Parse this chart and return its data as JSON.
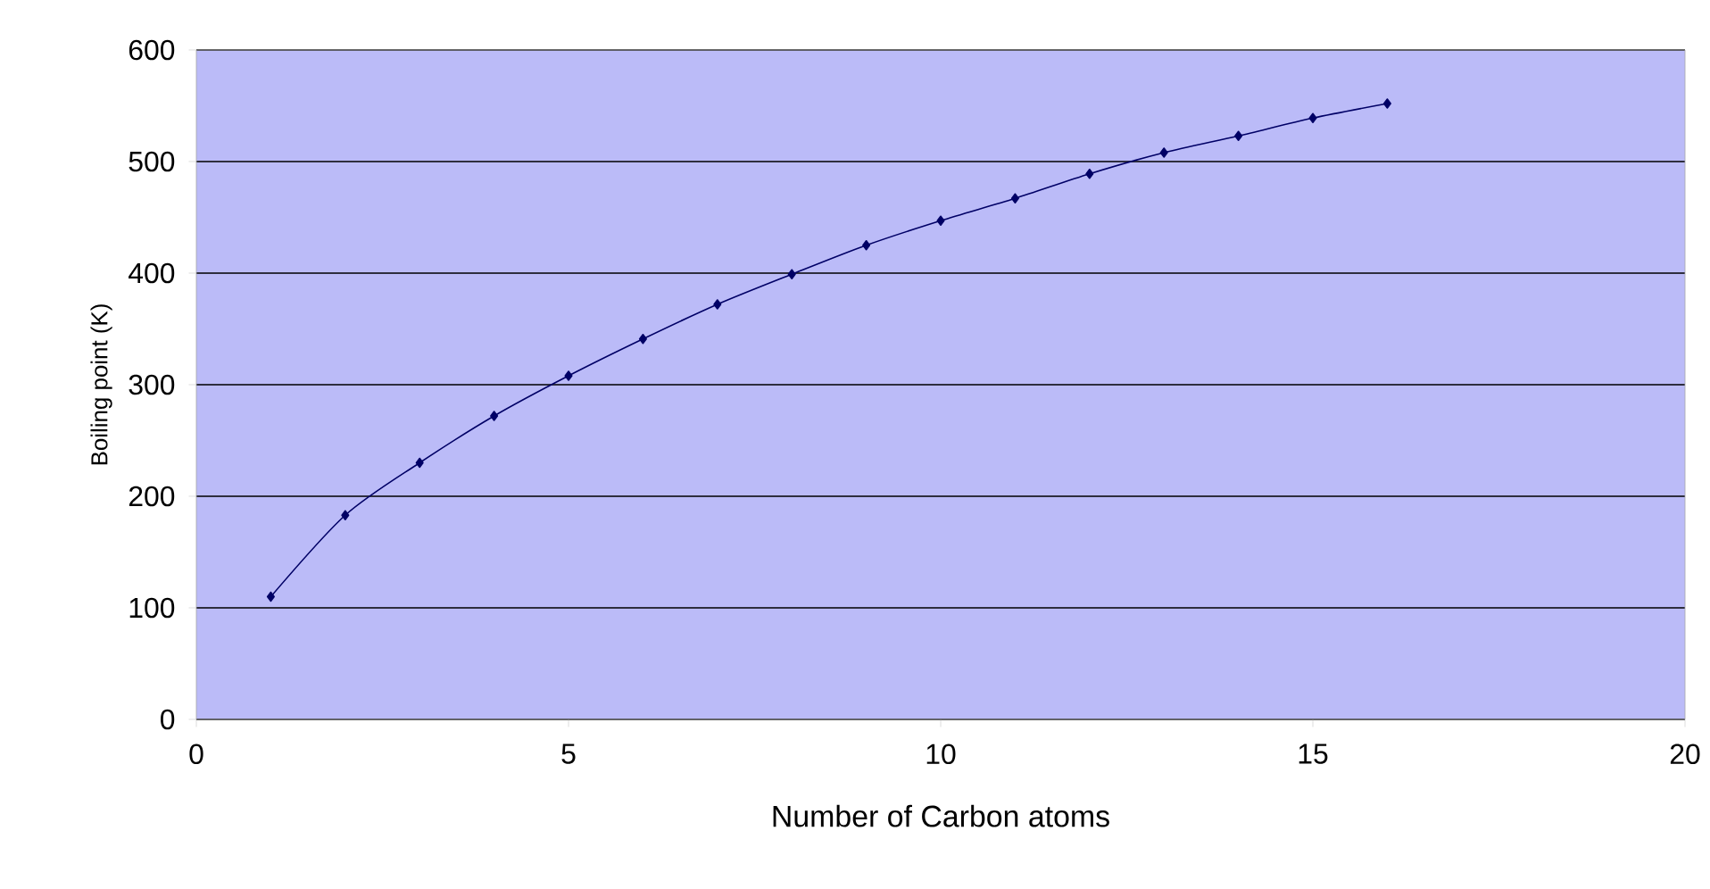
{
  "chart_data": {
    "type": "line",
    "xlabel": "Number of Carbon atoms",
    "ylabel": "Boiling point (K)",
    "x": [
      1,
      2,
      3,
      4,
      5,
      6,
      7,
      8,
      9,
      10,
      11,
      12,
      13,
      14,
      15,
      16
    ],
    "series": [
      {
        "color": "#000066",
        "values": [
          110,
          183,
          230,
          272,
          308,
          341,
          372,
          399,
          425,
          447,
          467,
          489,
          508,
          523,
          539,
          552
        ]
      }
    ],
    "xlim": [
      0,
      20
    ],
    "ylim": [
      0,
      600
    ],
    "xticks": [
      0,
      5,
      10,
      15,
      20
    ],
    "yticks": [
      0,
      100,
      200,
      300,
      400,
      500,
      600
    ],
    "grid": "y",
    "marker": "diamond",
    "line_style": "solid"
  }
}
